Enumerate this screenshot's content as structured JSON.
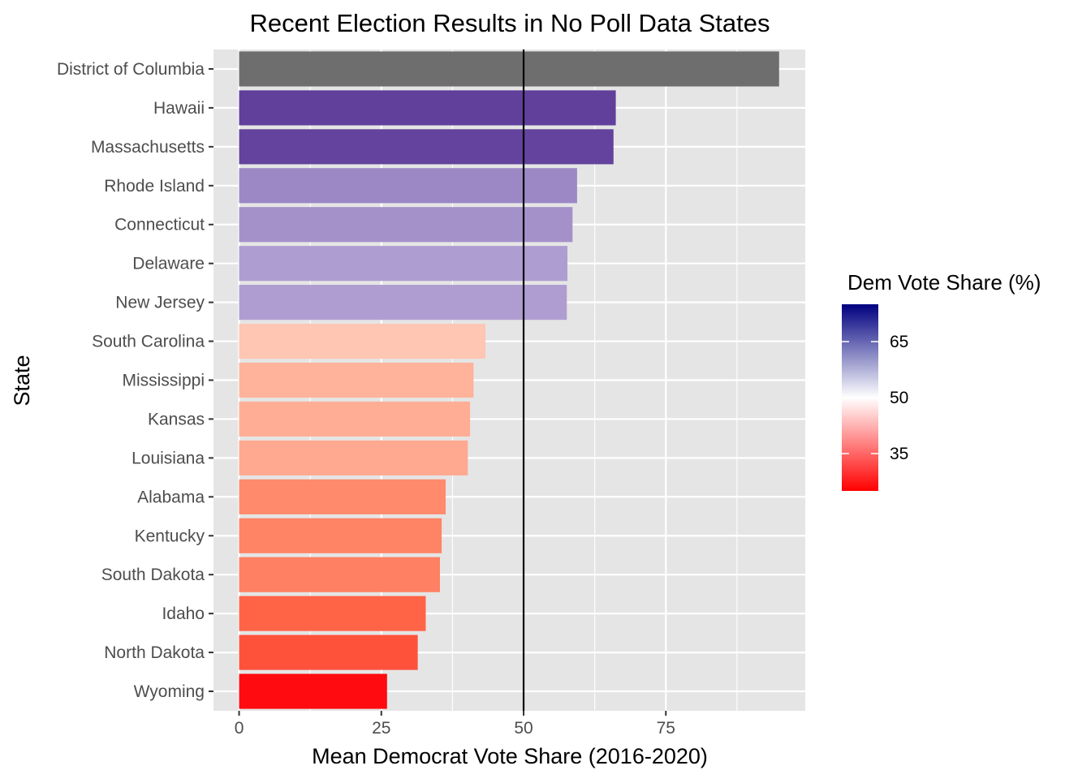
{
  "chart_data": {
    "type": "bar",
    "orientation": "horizontal",
    "title": "Recent Election Results in No Poll Data States",
    "xlabel": "Mean Democrat Vote Share (2016-2020)",
    "ylabel": "State",
    "xlim": [
      -4.5,
      99.5
    ],
    "x_ticks": [
      0,
      25,
      50,
      75
    ],
    "x_tick_labels": [
      "0",
      "25",
      "50",
      "75"
    ],
    "x_minor_ticks": [
      12.5,
      37.5,
      62.5,
      87.5
    ],
    "grid": true,
    "background": "#e5e5e5",
    "reference_line": {
      "x": 50,
      "color": "#000000"
    },
    "categories": [
      "District of Columbia",
      "Hawaii",
      "Massachusetts",
      "Rhode Island",
      "Connecticut",
      "Delaware",
      "New Jersey",
      "South Carolina",
      "Mississippi",
      "Kansas",
      "Louisiana",
      "Alabama",
      "Kentucky",
      "South Dakota",
      "Idaho",
      "North Dakota",
      "Wyoming"
    ],
    "values": [
      94.9,
      66.2,
      65.8,
      59.4,
      58.6,
      57.7,
      57.6,
      43.3,
      41.2,
      40.6,
      40.2,
      36.3,
      35.6,
      35.3,
      32.8,
      31.4,
      26.0
    ],
    "colors": [
      "#6e6e6e",
      "#61409c",
      "#63439d",
      "#9d88c6",
      "#a591ca",
      "#ae9dd1",
      "#af9dd2",
      "#ffc6b3",
      "#ffb39a",
      "#ffae95",
      "#ffa991",
      "#ff8a6c",
      "#ff8466",
      "#ff8063",
      "#ff6447",
      "#ff523b",
      "#ff0b10"
    ],
    "legend": {
      "title": "Dem Vote Share (%)",
      "position": "right",
      "min": 25,
      "max": 75,
      "ticks": [
        35,
        50,
        65
      ],
      "tick_labels": [
        "35",
        "50",
        "65"
      ],
      "low_color": "#ff0000",
      "mid_color": "#ffffff",
      "high_color": "#000080"
    }
  }
}
